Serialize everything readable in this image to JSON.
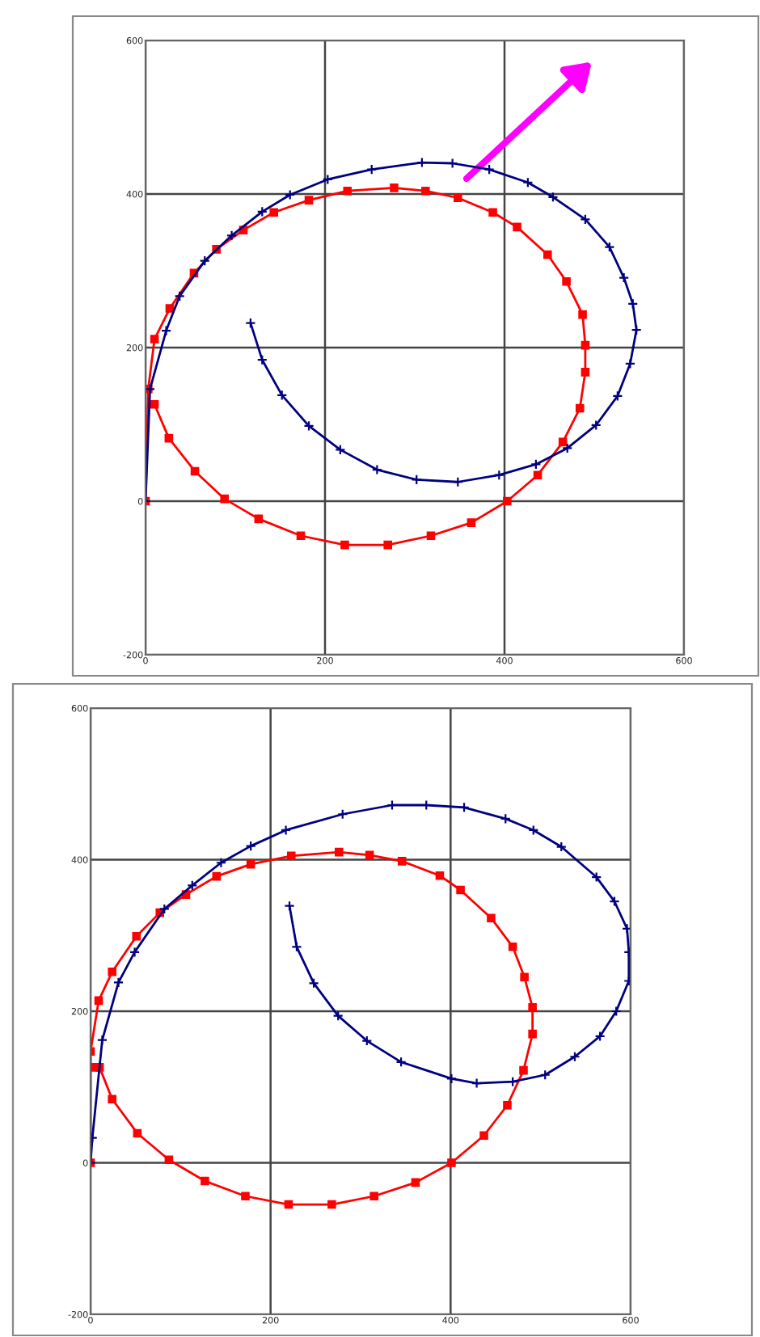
{
  "chart_data": [
    {
      "type": "line",
      "xlim": [
        0,
        600
      ],
      "ylim": [
        -200,
        600
      ],
      "xticks": [
        0,
        200,
        400,
        600
      ],
      "yticks": [
        -200,
        0,
        200,
        400,
        600
      ],
      "grid": true,
      "line_style": "solid",
      "series": [
        {
          "color": "#ff0000",
          "marker": "square",
          "x": [
            0,
            3,
            10,
            27,
            54,
            79,
            109,
            143,
            182,
            225,
            277,
            312,
            348,
            387,
            414,
            448,
            469,
            487,
            490,
            490,
            484,
            465,
            437,
            403,
            363,
            318,
            270,
            222,
            173,
            126,
            88,
            55,
            26,
            10
          ],
          "values": [
            0,
            146,
            211,
            251,
            297,
            328,
            353,
            376,
            392,
            404,
            408,
            404,
            395,
            376,
            357,
            321,
            286,
            243,
            203,
            168,
            121,
            77,
            34,
            0,
            -28,
            -45,
            -57,
            -57,
            -45,
            -23,
            3,
            39,
            82,
            126
          ]
        },
        {
          "color": "#000080",
          "marker": "cross",
          "x": [
            0,
            5,
            23,
            38,
            66,
            96,
            130,
            161,
            203,
            252,
            308,
            342,
            383,
            426,
            454,
            490,
            517,
            533,
            543,
            547,
            540,
            526,
            502,
            470,
            435,
            394,
            348,
            302,
            258,
            217,
            182,
            152,
            130,
            117
          ],
          "values": [
            0,
            146,
            222,
            267,
            313,
            346,
            377,
            399,
            419,
            432,
            441,
            440,
            432,
            415,
            396,
            367,
            331,
            291,
            257,
            223,
            179,
            137,
            99,
            69,
            48,
            34,
            25,
            28,
            41,
            67,
            98,
            138,
            184,
            232
          ]
        }
      ]
    },
    {
      "type": "line",
      "xlim": [
        0,
        600
      ],
      "ylim": [
        -200,
        600
      ],
      "xticks": [
        0,
        200,
        400,
        600
      ],
      "yticks": [
        -200,
        0,
        200,
        400,
        600
      ],
      "grid": true,
      "line_style": "solid",
      "series": [
        {
          "color": "#ff0000",
          "marker": "square",
          "x": [
            0,
            0,
            9,
            24,
            51,
            77,
            106,
            140,
            178,
            223,
            276,
            310,
            346,
            388,
            411,
            445,
            469,
            482,
            491,
            491,
            481,
            463,
            437,
            401,
            361,
            315,
            268,
            220,
            172,
            127,
            87,
            52,
            24,
            10,
            4
          ],
          "values": [
            0,
            147,
            214,
            252,
            299,
            330,
            354,
            378,
            394,
            405,
            410,
            406,
            398,
            379,
            360,
            323,
            285,
            245,
            205,
            170,
            122,
            76,
            36,
            0,
            -26,
            -44,
            -55,
            -55,
            -44,
            -24,
            4,
            39,
            84,
            126,
            126
          ]
        },
        {
          "color": "#000080",
          "marker": "cross",
          "x": [
            0,
            2,
            13,
            31,
            49,
            82,
            113,
            145,
            178,
            217,
            280,
            335,
            373,
            415,
            461,
            492,
            523,
            562,
            582,
            596,
            598,
            598,
            584,
            566,
            538,
            505,
            469,
            429,
            401,
            345,
            307,
            275,
            248,
            229,
            221
          ],
          "values": [
            0,
            33,
            162,
            238,
            278,
            335,
            366,
            396,
            418,
            439,
            460,
            472,
            472,
            469,
            454,
            439,
            417,
            377,
            345,
            309,
            278,
            240,
            200,
            167,
            140,
            116,
            107,
            105,
            111,
            133,
            161,
            194,
            237,
            285,
            339
          ]
        }
      ]
    }
  ]
}
